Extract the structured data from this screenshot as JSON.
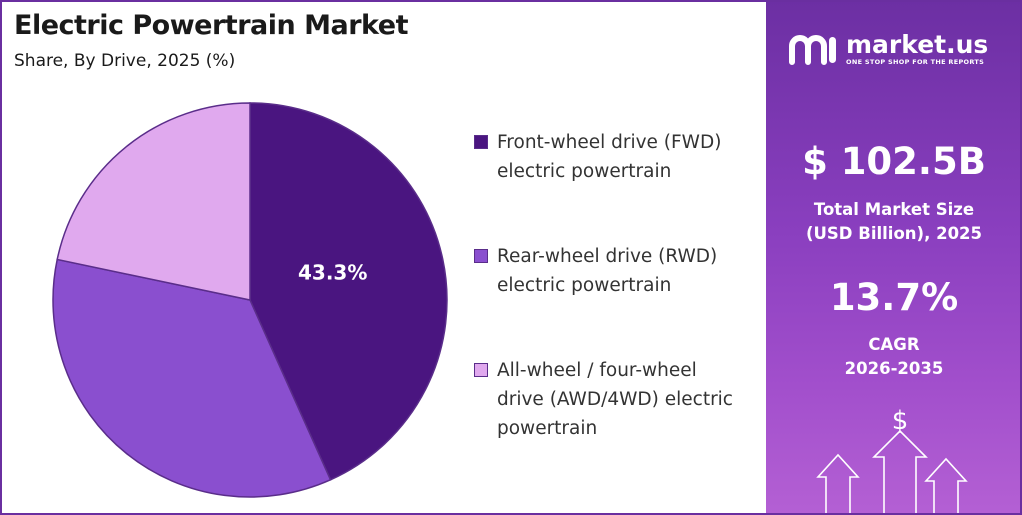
{
  "header": {
    "title": "Electric Powertrain Market",
    "subtitle": "Share, By Drive, 2025 (%)"
  },
  "chart_data": {
    "type": "pie",
    "title": "Electric Powertrain Market",
    "subtitle": "Share, By Drive, 2025 (%)",
    "slices": [
      {
        "label": "Front-wheel drive (FWD) electric powertrain",
        "value": 43.3,
        "color": "#4a1580",
        "shown_label": "43.3%"
      },
      {
        "label": "Rear-wheel drive (RWD) electric powertrain",
        "value": 35.0,
        "color": "#8a4fcf",
        "shown_label": ""
      },
      {
        "label": "All-wheel / four-wheel drive (AWD/4WD) electric powertrain",
        "value": 21.7,
        "color": "#e0a9ee",
        "shown_label": ""
      }
    ],
    "legend_position": "right",
    "data_label_color": "#ffffff"
  },
  "legend": [
    {
      "lines": [
        "Front-wheel drive (FWD)",
        "electric powertrain"
      ],
      "color": "#4a1580"
    },
    {
      "lines": [
        "Rear-wheel drive (RWD)",
        "electric powertrain"
      ],
      "color": "#8a4fcf"
    },
    {
      "lines": [
        "All-wheel / four-wheel",
        "drive (AWD/4WD) electric",
        "powertrain"
      ],
      "color": "#e0a9ee"
    }
  ],
  "brand": {
    "name": "market.us",
    "tagline": "ONE STOP SHOP FOR THE REPORTS",
    "icon": "market-us-logo-icon"
  },
  "stats": {
    "market_size": "$ 102.5B",
    "market_size_label_1": "Total Market Size",
    "market_size_label_2": "(USD Billion), 2025",
    "cagr": "13.7%",
    "cagr_label_1": "CAGR",
    "cagr_label_2": "2026-2035"
  },
  "decoration": {
    "dollar_symbol": "$",
    "icons": [
      "dollar-icon",
      "up-arrow-icon"
    ]
  },
  "colors": {
    "panel_top": "#6c2fa3",
    "panel_bottom": "#b460d4",
    "border": "#6a2fa0"
  }
}
